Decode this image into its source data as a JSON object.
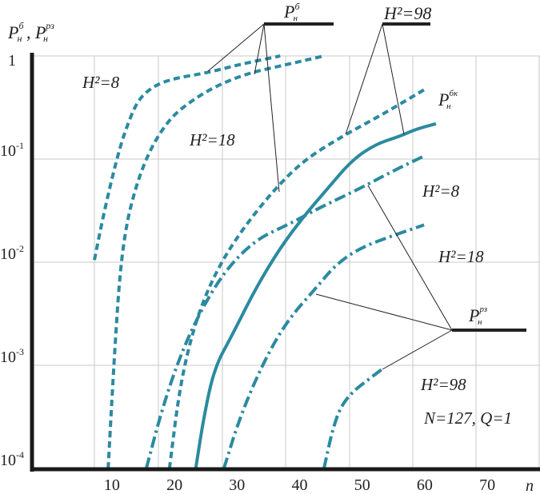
{
  "chart_data": {
    "type": "line",
    "xlabel": "n",
    "ylabel": {
      "parts": [
        {
          "base": "P",
          "sub": "н",
          "sup": "б"
        },
        {
          "sep": " , "
        },
        {
          "base": "P",
          "sub": "н",
          "sup": "рз"
        }
      ]
    },
    "yscale": "log",
    "xlim": [
      0,
      80
    ],
    "ylim": [
      0.0001,
      1
    ],
    "grid": true,
    "line_color": "#2b8aa0",
    "x_ticks": [
      "10",
      "20",
      "30",
      "40",
      "50",
      "60",
      "70"
    ],
    "x_tick_values": [
      10,
      20,
      30,
      40,
      50,
      60,
      70
    ],
    "y_ticks": [
      {
        "base": "1",
        "sup": "",
        "value": 1
      },
      {
        "base": "10",
        "sup": "-1",
        "value": 0.1
      },
      {
        "base": "10",
        "sup": "-2",
        "value": 0.01
      },
      {
        "base": "10",
        "sup": "-3",
        "value": 0.001
      },
      {
        "base": "10",
        "sup": "-4",
        "value": 0.0001
      }
    ],
    "series": [
      {
        "group": "P_н^б",
        "h2": 8,
        "style": "dashed",
        "x": [
          7.2,
          8.5,
          10.0,
          11.3,
          12.3,
          13.9,
          15.8,
          18.9,
          25.4,
          30.5,
          36.9
        ],
        "y": [
          0.0105,
          0.026,
          0.065,
          0.13,
          0.2,
          0.35,
          0.47,
          0.59,
          0.69,
          0.83,
          1.0
        ]
      },
      {
        "group": "P_н^б",
        "h2": 18,
        "style": "dashed",
        "x": [
          9.4,
          10.0,
          10.6,
          11.3,
          12.3,
          13.6,
          15.1,
          17.0,
          19.6,
          22.8,
          26.6,
          31.7,
          38.1,
          43.9
        ],
        "y": [
          0.0001,
          0.00047,
          0.00195,
          0.0081,
          0.023,
          0.048,
          0.089,
          0.155,
          0.26,
          0.37,
          0.51,
          0.68,
          0.83,
          1.0
        ]
      },
      {
        "group": "P_н^бк",
        "h2": 98,
        "style": "dashed",
        "x": [
          19.2,
          20.9,
          23.4,
          26.6,
          30.5,
          35.6,
          40.7,
          47.1,
          52.2,
          56.0,
          59.9
        ],
        "y": [
          0.0001,
          0.00066,
          0.00275,
          0.0081,
          0.0195,
          0.048,
          0.098,
          0.17,
          0.25,
          0.34,
          0.47
        ]
      },
      {
        "group": "P_н^б",
        "h2": 98,
        "style": "solid",
        "x": [
          23.4,
          24.7,
          26.4,
          29.2,
          33.0,
          36.9,
          40.7,
          44.5,
          48.4,
          52.2,
          56.0,
          58.6,
          61.8
        ],
        "y": [
          0.0001,
          0.00032,
          0.00095,
          0.00195,
          0.0056,
          0.0138,
          0.028,
          0.052,
          0.098,
          0.14,
          0.166,
          0.195,
          0.22
        ]
      },
      {
        "group": "P_н^рз",
        "h2": 8,
        "style": "dash-dot",
        "x": [
          15.5,
          17.7,
          20.2,
          23.4,
          27.9,
          33.0,
          38.1,
          43.3,
          49.7,
          54.8,
          59.9
        ],
        "y": [
          0.0001,
          0.00032,
          0.00095,
          0.00275,
          0.0081,
          0.0166,
          0.023,
          0.034,
          0.052,
          0.076,
          0.107
        ]
      },
      {
        "group": "P_н^рз",
        "h2": 18,
        "style": "dash-dot",
        "x": [
          27.9,
          30.5,
          34.3,
          38.1,
          42.6,
          45.8,
          49.7,
          54.8,
          59.9
        ],
        "y": [
          0.0001,
          0.00032,
          0.0011,
          0.00275,
          0.0056,
          0.0095,
          0.0138,
          0.018,
          0.023
        ]
      },
      {
        "group": "P_н^рз",
        "h2": 98,
        "style": "dash-dot",
        "x": [
          43.9,
          45.2,
          46.5,
          48.4,
          50.9,
          53.5
        ],
        "y": [
          0.0001,
          0.00023,
          0.00039,
          0.00055,
          0.00072,
          0.00095
        ]
      }
    ],
    "annotations": {
      "pb_legend": {
        "base": "P",
        "sub": "н",
        "sup": "б"
      },
      "h98_legend": "H²=98",
      "pbk_label": {
        "base": "P",
        "sub": "н",
        "sup": "бк"
      },
      "prz_legend": {
        "base": "P",
        "sub": "н",
        "sup": "рз"
      },
      "left_h8": "H²=8",
      "left_h18": "H²=18",
      "right_h8": "H²=8",
      "right_h18": "H²=18",
      "right_h98": "H²=98",
      "params": "N=127, Q=1"
    }
  }
}
